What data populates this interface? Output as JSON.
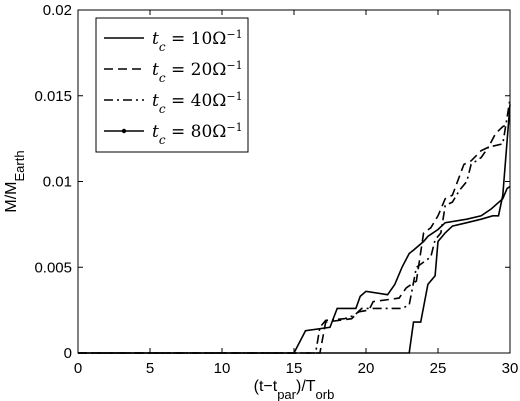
{
  "chart_data": {
    "type": "line",
    "title": "",
    "xlabel": "(t−t_par)/T_orb",
    "ylabel": "M/M_Earth",
    "xlim": [
      0,
      30
    ],
    "ylim": [
      0,
      0.02
    ],
    "xticks": [
      0,
      5,
      10,
      15,
      20,
      25,
      30
    ],
    "xtick_labels": [
      "0",
      "5",
      "10",
      "15",
      "20",
      "25",
      "30"
    ],
    "yticks": [
      0,
      0.005,
      0.01,
      0.015,
      0.02
    ],
    "ytick_labels": [
      "0",
      "0.005",
      "0.01",
      "0.015",
      "0.02"
    ],
    "grid": false,
    "legend_position": "top-left",
    "series": [
      {
        "name": "t_c = 10Ω⁻¹",
        "label_parts": [
          "t",
          "c",
          " = 10Ω",
          "−1"
        ],
        "style": "solid",
        "points": [
          [
            0,
            0
          ],
          [
            15.0,
            0
          ],
          [
            15.8,
            0.0013
          ],
          [
            17.5,
            0.0015
          ],
          [
            18.0,
            0.0026
          ],
          [
            19.3,
            0.0026
          ],
          [
            19.6,
            0.0033
          ],
          [
            20.0,
            0.0036
          ],
          [
            21.5,
            0.0034
          ],
          [
            22.0,
            0.004
          ],
          [
            22.5,
            0.005
          ],
          [
            23.0,
            0.0058
          ],
          [
            23.3,
            0.006
          ],
          [
            24.0,
            0.0065
          ],
          [
            24.3,
            0.0068
          ],
          [
            25.0,
            0.0072
          ],
          [
            25.5,
            0.0076
          ],
          [
            27.0,
            0.0078
          ],
          [
            28.0,
            0.008
          ],
          [
            28.7,
            0.0084
          ],
          [
            29.5,
            0.009
          ],
          [
            29.8,
            0.0096
          ],
          [
            30.0,
            0.0097
          ]
        ]
      },
      {
        "name": "t_c = 20Ω⁻¹",
        "label_parts": [
          "t",
          "c",
          " = 20Ω",
          "−1"
        ],
        "style": "dashed",
        "points": [
          [
            0,
            0
          ],
          [
            16.8,
            0
          ],
          [
            17.2,
            0.0018
          ],
          [
            19.0,
            0.002
          ],
          [
            19.5,
            0.0024
          ],
          [
            20.2,
            0.0025
          ],
          [
            20.5,
            0.003
          ],
          [
            22.3,
            0.0032
          ],
          [
            22.8,
            0.0038
          ],
          [
            23.5,
            0.0042
          ],
          [
            24.0,
            0.007
          ],
          [
            24.5,
            0.0073
          ],
          [
            25.0,
            0.008
          ],
          [
            25.5,
            0.009
          ],
          [
            26.0,
            0.0092
          ],
          [
            26.8,
            0.011
          ],
          [
            27.3,
            0.0112
          ],
          [
            28.0,
            0.0118
          ],
          [
            28.5,
            0.012
          ],
          [
            29.0,
            0.0128
          ],
          [
            29.5,
            0.0132
          ],
          [
            30.0,
            0.0134
          ]
        ]
      },
      {
        "name": "t_c = 40Ω⁻¹",
        "label_parts": [
          "t",
          "c",
          " = 40Ω",
          "−1"
        ],
        "style": "dashdot",
        "points": [
          [
            0,
            0
          ],
          [
            16.5,
            0
          ],
          [
            16.8,
            0.0015
          ],
          [
            17.2,
            0.0019
          ],
          [
            18.5,
            0.002
          ],
          [
            19.2,
            0.0022
          ],
          [
            19.7,
            0.0026
          ],
          [
            20.5,
            0.0026
          ],
          [
            21.8,
            0.0026
          ],
          [
            22.5,
            0.0026
          ],
          [
            23.0,
            0.0028
          ],
          [
            23.5,
            0.005
          ],
          [
            24.5,
            0.0056
          ],
          [
            24.8,
            0.0066
          ],
          [
            25.2,
            0.007
          ],
          [
            25.5,
            0.0086
          ],
          [
            26.0,
            0.0088
          ],
          [
            26.5,
            0.0095
          ],
          [
            27.0,
            0.01
          ],
          [
            27.3,
            0.011
          ],
          [
            28.0,
            0.0114
          ],
          [
            28.5,
            0.012
          ],
          [
            29.5,
            0.0122
          ],
          [
            30.0,
            0.0148
          ]
        ]
      },
      {
        "name": "t_c = 80Ω⁻¹",
        "label_parts": [
          "t",
          "c",
          " = 80Ω",
          "−1"
        ],
        "style": "solid-dot",
        "points": [
          [
            0,
            0
          ],
          [
            23.0,
            0
          ],
          [
            23.3,
            0.0018
          ],
          [
            23.8,
            0.0018
          ],
          [
            24.3,
            0.004
          ],
          [
            24.8,
            0.0045
          ],
          [
            25.0,
            0.0065
          ],
          [
            25.5,
            0.007
          ],
          [
            26.0,
            0.0074
          ],
          [
            27.0,
            0.0076
          ],
          [
            28.0,
            0.0078
          ],
          [
            28.8,
            0.008
          ],
          [
            29.2,
            0.008
          ],
          [
            29.5,
            0.0092
          ],
          [
            30.0,
            0.0145
          ]
        ]
      }
    ]
  }
}
